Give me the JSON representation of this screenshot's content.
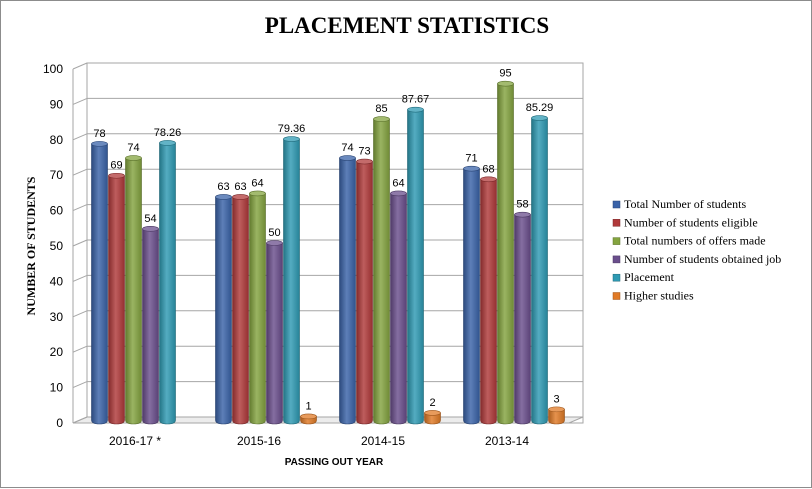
{
  "chart_data": {
    "type": "bar",
    "title": "PLACEMENT STATISTICS",
    "xlabel": "PASSING OUT YEAR",
    "ylabel": "NUMBER  OF STUDENTS",
    "ylim": [
      0,
      100
    ],
    "yticks": [
      0,
      10,
      20,
      30,
      40,
      50,
      60,
      70,
      80,
      90,
      100
    ],
    "grid": true,
    "legend_position": "right",
    "categories": [
      "2016-17 *",
      "2015-16",
      "2014-15",
      "2013-14"
    ],
    "series": [
      {
        "name": "Total Number of students",
        "color": "#3A63A8",
        "values": [
          78,
          63,
          74,
          71
        ],
        "labels": [
          "78",
          "63",
          "74",
          "71"
        ]
      },
      {
        "name": "Number of students eligible",
        "color": "#B0393A",
        "values": [
          69,
          63,
          73,
          68
        ],
        "labels": [
          "69",
          "63",
          "73",
          "68"
        ]
      },
      {
        "name": "Total numbers of offers made",
        "color": "#84A43F",
        "values": [
          74,
          64,
          85,
          95
        ],
        "labels": [
          "74",
          "64",
          "85",
          "95"
        ]
      },
      {
        "name": "Number of students obtained job",
        "color": "#6A4E8C",
        "values": [
          54,
          50,
          64,
          58
        ],
        "labels": [
          "54",
          "50",
          "64",
          "58"
        ]
      },
      {
        "name": "Placement",
        "color": "#2E9AB3",
        "values": [
          78.26,
          79.36,
          87.67,
          85.29
        ],
        "labels": [
          "78.26",
          "79.36",
          "87.67",
          "85.29"
        ]
      },
      {
        "name": "Higher studies",
        "color": "#E07A26",
        "values": [
          null,
          1,
          2,
          3
        ],
        "labels": [
          "",
          "1",
          "2",
          "3"
        ]
      }
    ]
  }
}
